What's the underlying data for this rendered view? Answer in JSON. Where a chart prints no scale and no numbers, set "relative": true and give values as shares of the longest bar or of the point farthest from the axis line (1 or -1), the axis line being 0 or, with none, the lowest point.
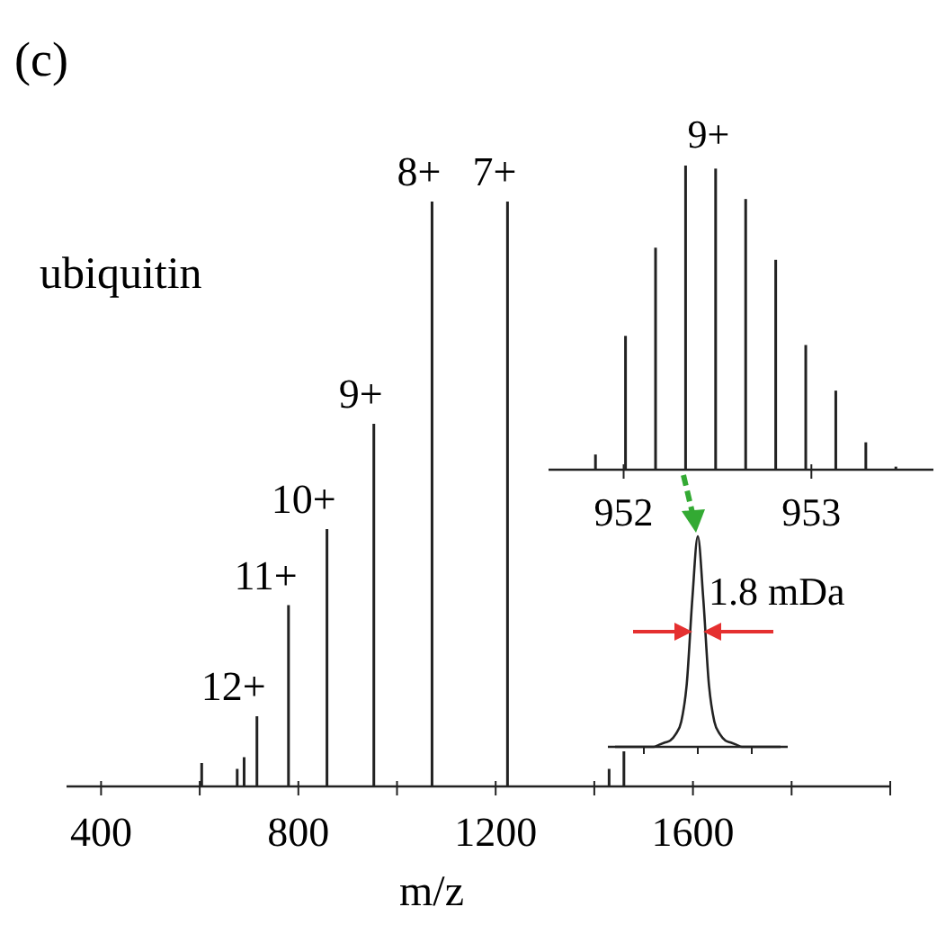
{
  "chart_data": [
    {
      "type": "bar",
      "title": "(c)",
      "xlabel": "m/z",
      "relative": true,
      "color": "#222222",
      "x": [
        604,
        676,
        690,
        716,
        780,
        858,
        953,
        1071,
        1224,
        1430,
        1460
      ],
      "values": [
        0.04,
        0.03,
        0.05,
        0.12,
        0.31,
        0.44,
        0.62,
        1,
        1,
        0.03,
        0.06
      ],
      "xlim": [
        330,
        2000
      ],
      "xticks": [
        400,
        {
          "value": 600,
          "label": null
        },
        800,
        {
          "value": 1000,
          "label": null
        },
        1200,
        {
          "value": 1400,
          "label": null
        },
        1600,
        {
          "value": 1800,
          "label": null
        },
        {
          "value": 2000,
          "label": null
        }
      ],
      "annotations": [
        "ubiquitin",
        {
          "text": "12+",
          "x": 716,
          "y": 0.12
        },
        {
          "text": "11+",
          "x": 780,
          "y": 0.31
        },
        {
          "text": "10+",
          "x": 858,
          "y": 0.44
        },
        {
          "text": "9+",
          "x": 953,
          "y": 0.62
        },
        {
          "text": "8+",
          "x": 1071,
          "y": 1
        },
        {
          "text": "7+",
          "x": 1224,
          "y": 1
        }
      ]
    },
    {
      "type": "bar",
      "relative": true,
      "color": "#222222",
      "x": [
        951.85,
        952.01,
        952.17,
        952.33,
        952.49,
        952.65,
        952.81,
        952.97,
        953.13,
        953.29,
        953.45
      ],
      "values": [
        0.05,
        0.44,
        0.73,
        1,
        0.99,
        0.89,
        0.69,
        0.41,
        0.26,
        0.09,
        0.01
      ],
      "xlim": [
        951.6,
        953.65
      ],
      "xticks": [
        952,
        953
      ],
      "annotations": [
        "9+"
      ]
    },
    {
      "type": "line",
      "relative": true,
      "color": "#222222",
      "categories": [
        null,
        null,
        null,
        null,
        null,
        null,
        null,
        null,
        null,
        null,
        null,
        null,
        null,
        null,
        null,
        null,
        null,
        null,
        null,
        null,
        null,
        null,
        null,
        null,
        null,
        null,
        null,
        null,
        null,
        null,
        null
      ],
      "values": [
        0,
        0,
        0,
        0,
        0,
        0,
        0,
        0,
        0.01,
        0.02,
        0.03,
        0.06,
        0.12,
        0.3,
        0.7,
        1,
        0.7,
        0.3,
        0.12,
        0.06,
        0.03,
        0.02,
        0.01,
        0,
        0,
        0,
        0,
        0,
        0,
        0,
        0
      ],
      "annotations": [
        "1.8 mDa"
      ]
    }
  ]
}
